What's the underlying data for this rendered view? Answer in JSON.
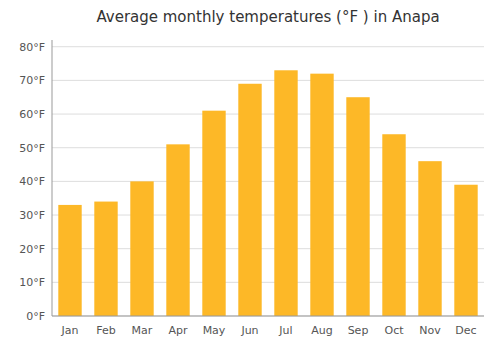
{
  "chart_data": {
    "type": "bar",
    "title": "Average monthly temperatures (°F ) in Anapa",
    "categories": [
      "Jan",
      "Feb",
      "Mar",
      "Apr",
      "May",
      "Jun",
      "Jul",
      "Aug",
      "Sep",
      "Oct",
      "Nov",
      "Dec"
    ],
    "values": [
      33,
      34,
      40,
      51,
      61,
      69,
      73,
      72,
      65,
      54,
      46,
      39
    ],
    "color": "#FDB827",
    "ylim": [
      0,
      82
    ],
    "yticks": [
      {
        "value": 0,
        "label": "0°F"
      },
      {
        "value": 10,
        "label": "10°F"
      },
      {
        "value": 20,
        "label": "20°F"
      },
      {
        "value": 30,
        "label": "30°F"
      },
      {
        "value": 40,
        "label": "40°F"
      },
      {
        "value": 50,
        "label": "50°F"
      },
      {
        "value": 60,
        "label": "60°F"
      },
      {
        "value": 70,
        "label": "70°F"
      },
      {
        "value": 80,
        "label": "80°F"
      }
    ],
    "grid": true
  }
}
